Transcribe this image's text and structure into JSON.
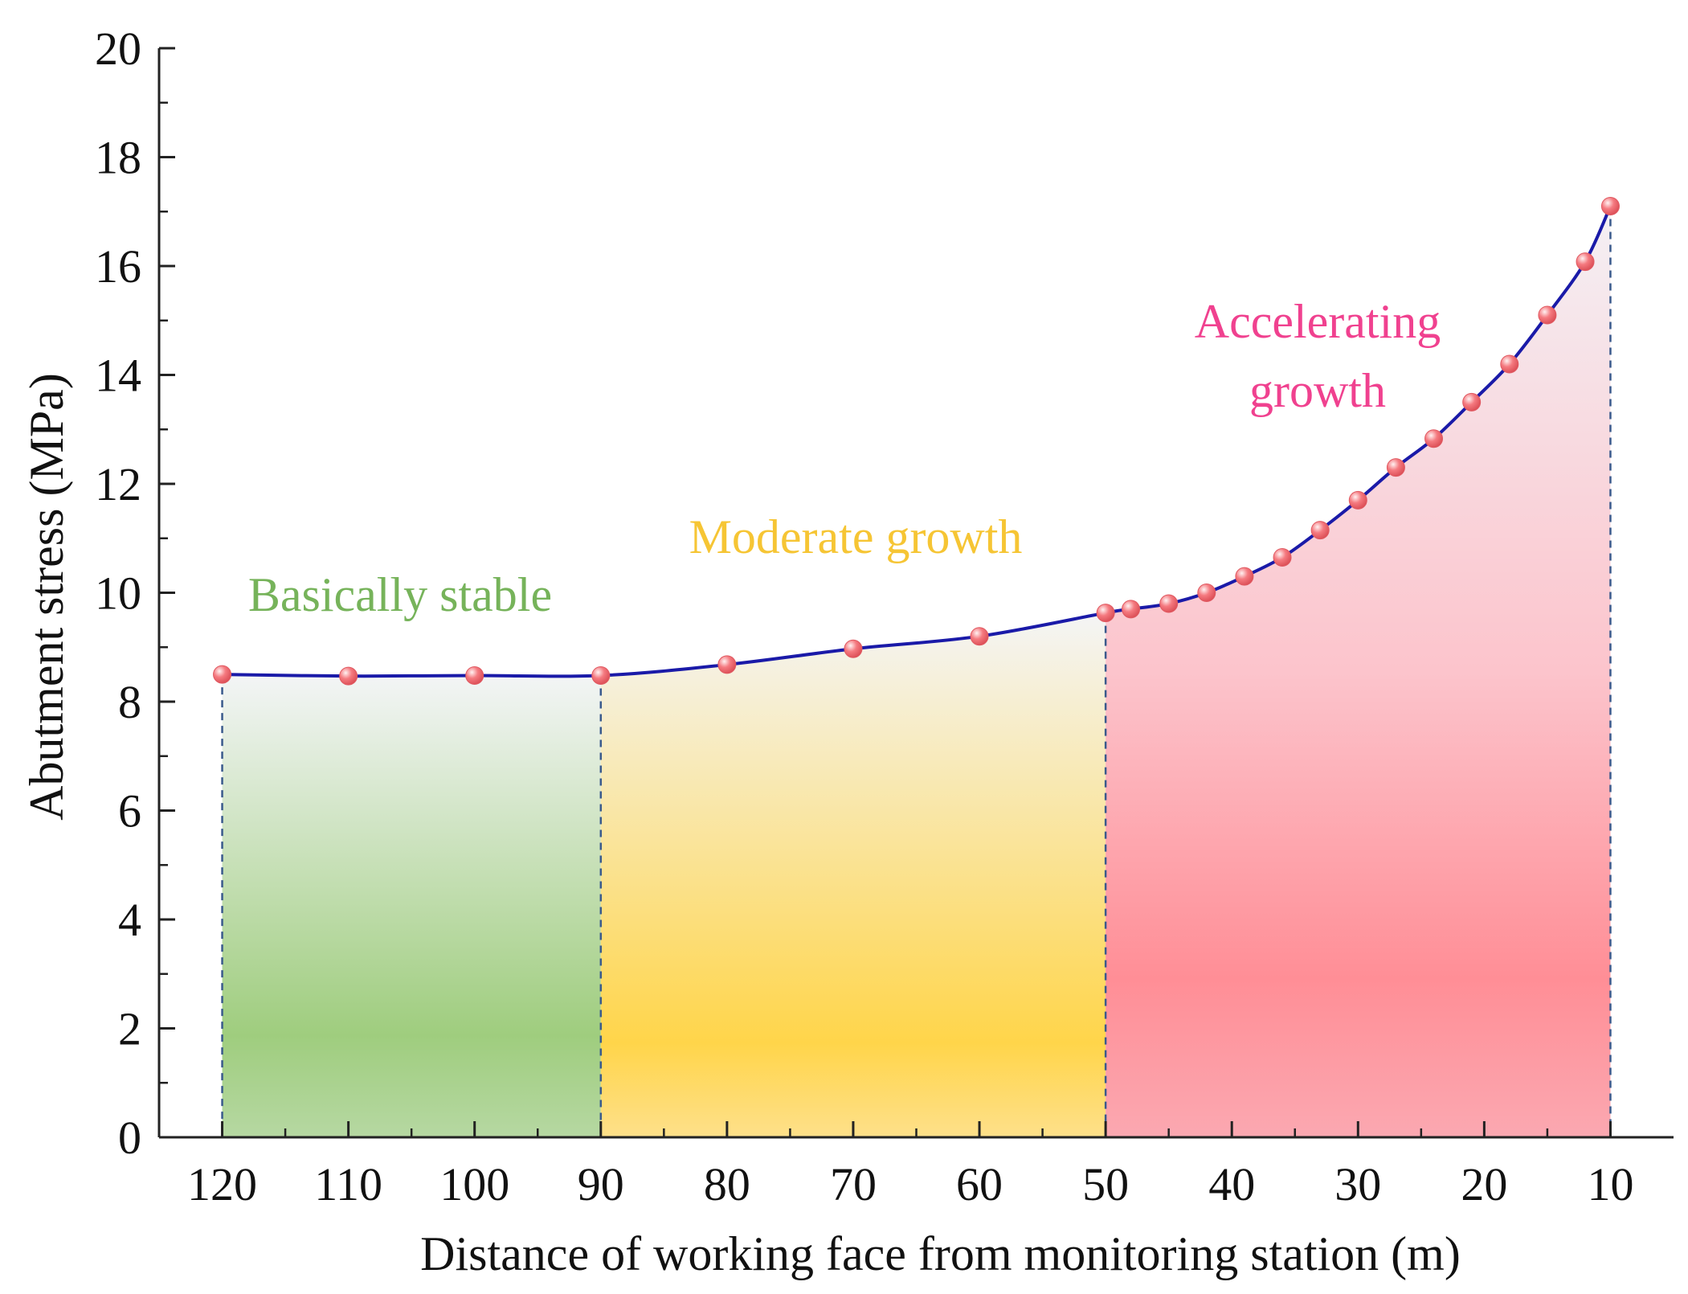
{
  "chart_data": {
    "type": "line",
    "title": "",
    "xlabel": "Distance of working face from monitoring station (m)",
    "ylabel": "Abutment stress (MPa)",
    "xlim": [
      125,
      5
    ],
    "ylim": [
      0,
      20
    ],
    "x_ticks": [
      120,
      110,
      100,
      90,
      80,
      70,
      60,
      50,
      40,
      30,
      20,
      10
    ],
    "y_ticks": [
      0,
      2,
      4,
      6,
      8,
      10,
      12,
      14,
      16,
      18,
      20
    ],
    "series": [
      {
        "name": "Abutment stress",
        "x": [
          120,
          110,
          100,
          90,
          80,
          70,
          60,
          50,
          48,
          45,
          42,
          39,
          36,
          33,
          30,
          27,
          24,
          21,
          18,
          15,
          12,
          10
        ],
        "y": [
          8.5,
          8.47,
          8.48,
          8.48,
          8.68,
          8.97,
          9.2,
          9.63,
          9.7,
          9.8,
          10.0,
          10.3,
          10.65,
          11.15,
          11.7,
          12.3,
          12.83,
          13.5,
          14.2,
          15.1,
          16.08,
          17.1
        ]
      }
    ],
    "regions": [
      {
        "label": "Basically stable",
        "x_start": 120,
        "x_end": 90,
        "label_color": "#76b35a",
        "fill_color": "#9fcd7e"
      },
      {
        "label": "Moderate growth",
        "x_start": 90,
        "x_end": 50,
        "label_color": "#f6c534",
        "fill_color": "#ffd54a"
      },
      {
        "label_lines": [
          "Accelerating",
          "growth"
        ],
        "x_start": 50,
        "x_end": 10,
        "label_color": "#f0418f",
        "fill_color": "#ff8e96"
      }
    ],
    "colors": {
      "line": "#1a1aa8",
      "marker": "#f26d74",
      "boundary": "#3a5a8c",
      "axis": "#222222"
    },
    "grid": false,
    "legend": "none"
  }
}
